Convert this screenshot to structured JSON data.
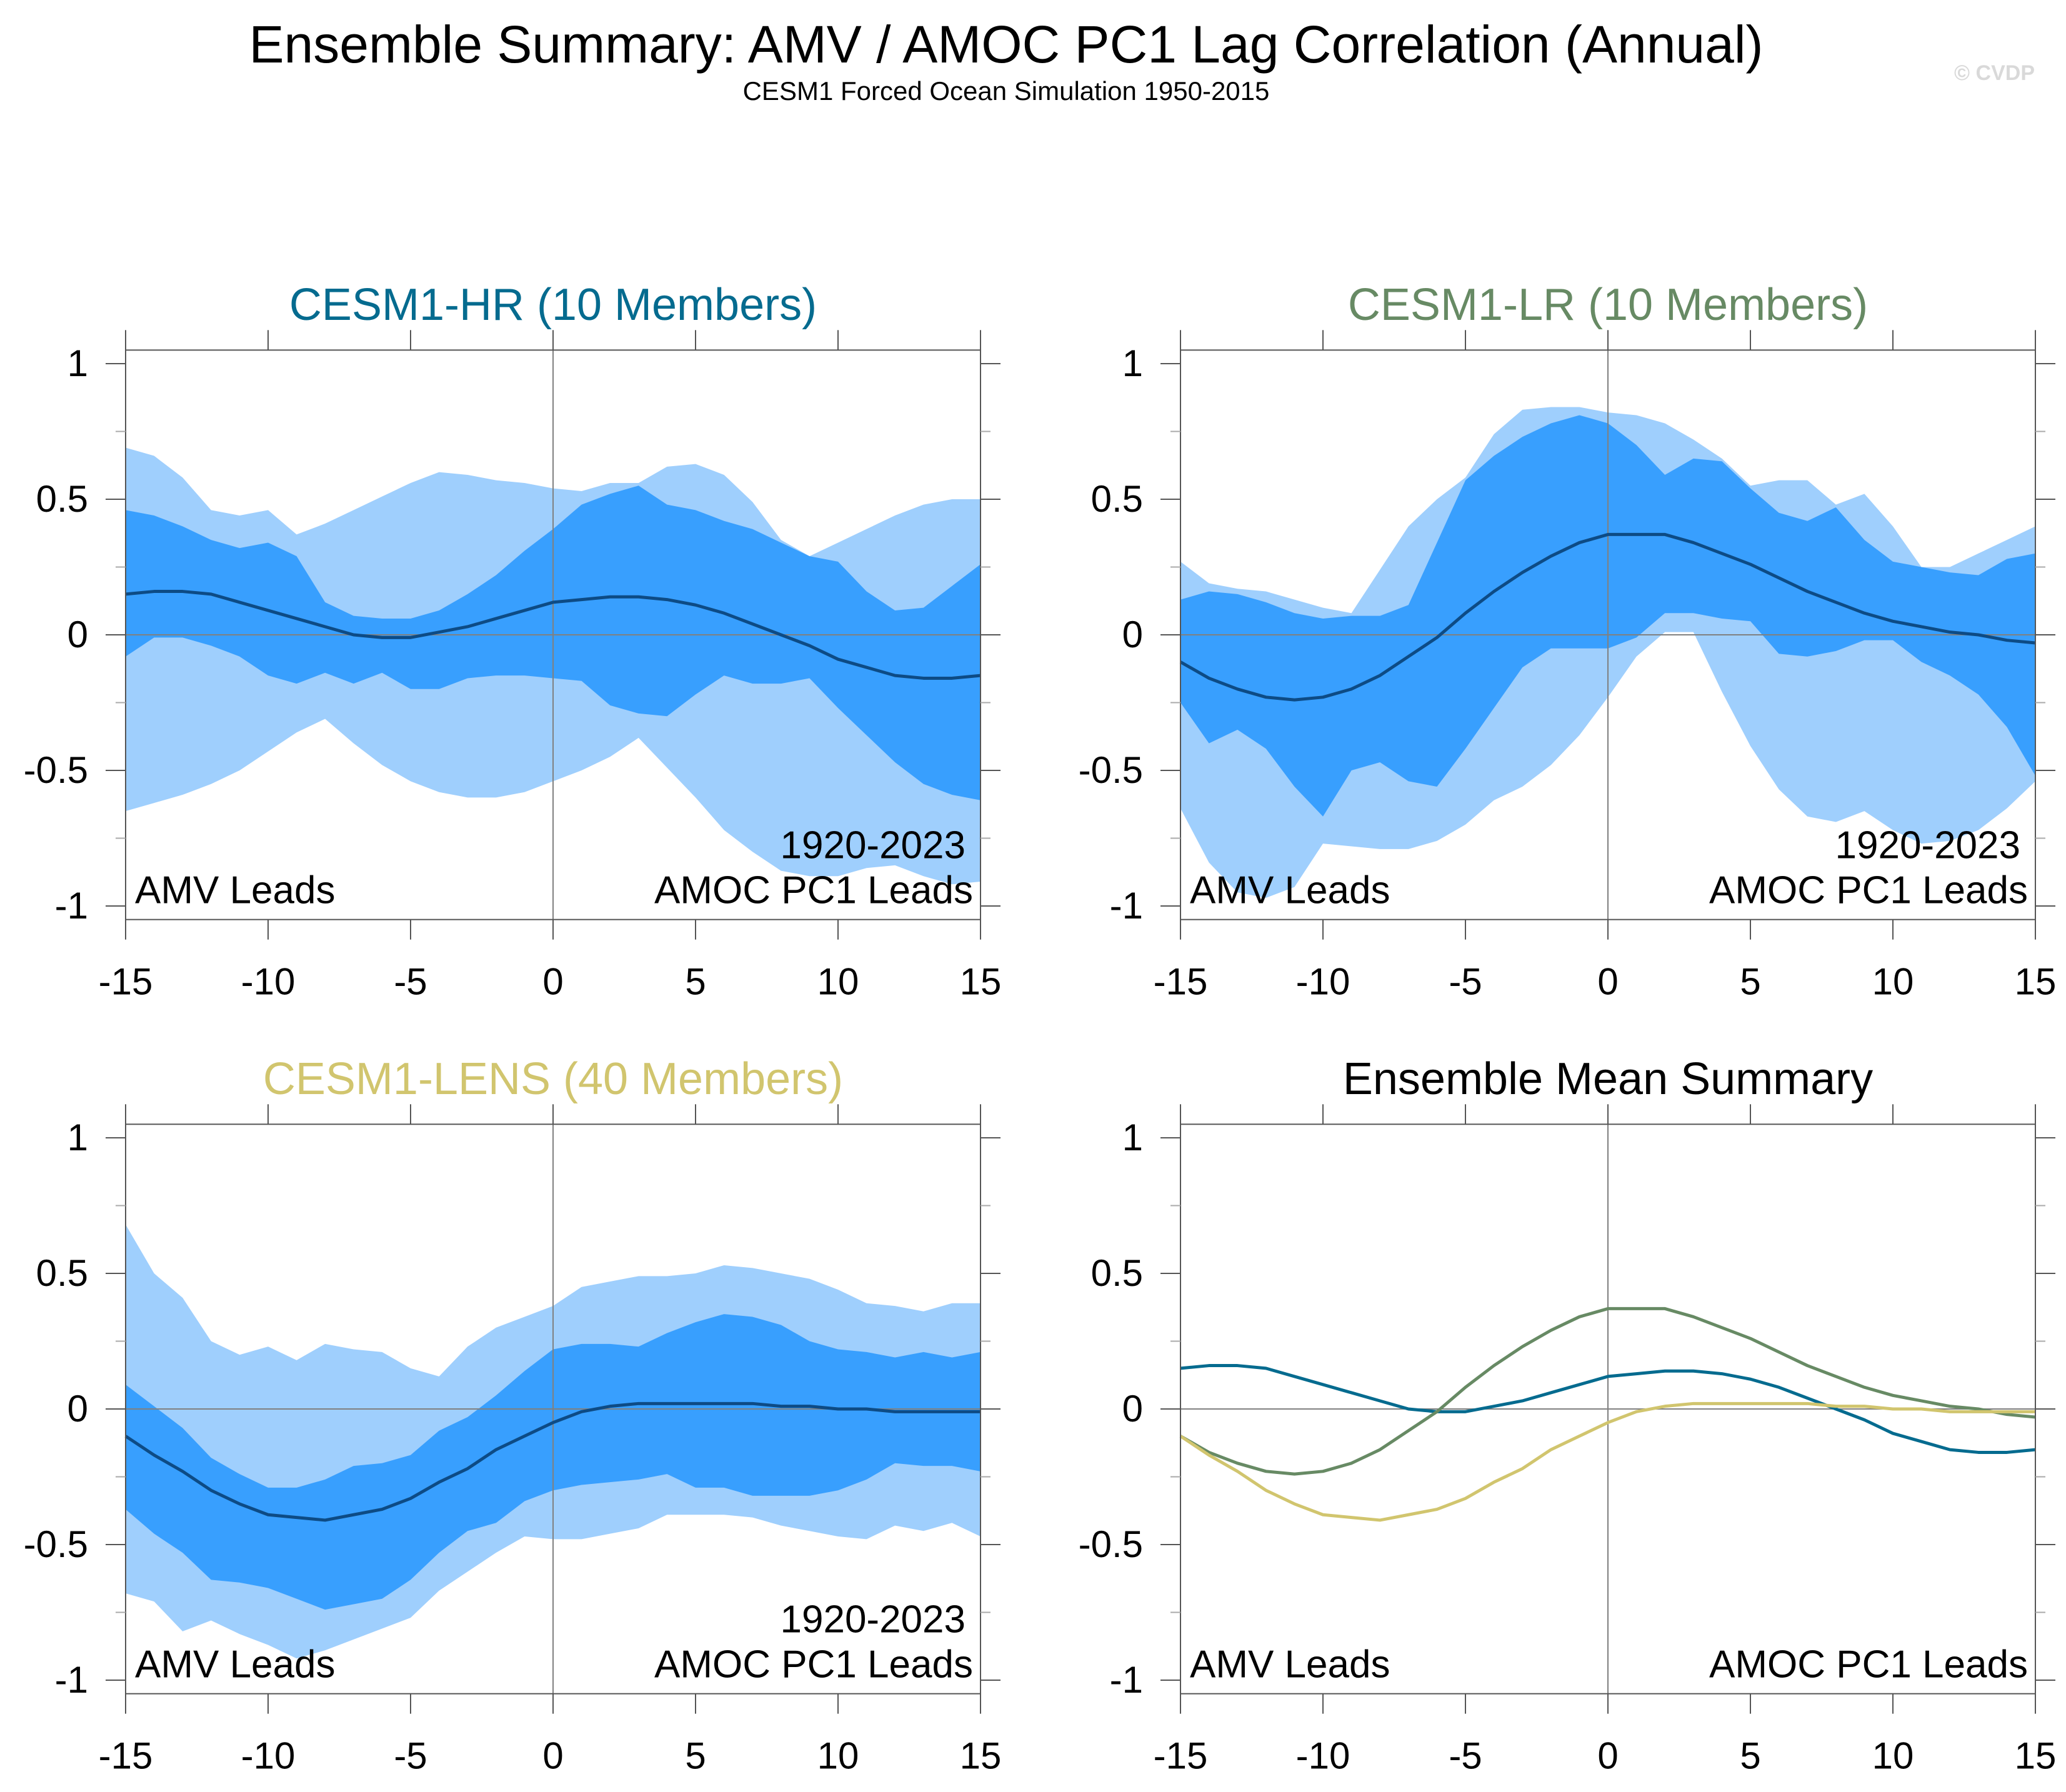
{
  "figure": {
    "title": "Ensemble Summary: AMV / AMOC PC1 Lag Correlation (Annual)",
    "subtitle": "CESM1 Forced Ocean Simulation 1950-2015",
    "copyright": "© CVDP"
  },
  "colors": {
    "hr": "#056b8f",
    "lr": "#678a64",
    "lens": "#d1c56e",
    "summary_title": "#000000",
    "band_outer": "#9fcffd",
    "band_inner": "#389ffe",
    "mean_line": "#0d4b85",
    "ref_line": "#808080"
  },
  "chart_data": [
    {
      "id": "hr",
      "type": "area",
      "title": "CESM1-HR (10 Members)",
      "title_color_key": "hr",
      "xlabel": "",
      "ylabel": "",
      "xlim": [
        -15,
        15
      ],
      "ylim": [
        -1.05,
        1.05
      ],
      "xticks": [
        -15,
        -10,
        -5,
        0,
        5,
        10,
        15
      ],
      "xtick_labels": [
        "-15",
        "-10",
        "-5",
        "0",
        "5",
        "10",
        "15"
      ],
      "yticks": [
        -1,
        -0.5,
        0,
        0.5,
        1
      ],
      "ytick_labels": [
        "-1",
        "-0.5",
        "0",
        "0.5",
        "1"
      ],
      "annotations": {
        "left": "AMV Leads",
        "right_top": "1920-2023",
        "right": "AMOC PC1 Leads"
      },
      "x": [
        -15,
        -14,
        -13,
        -12,
        -11,
        -10,
        -9,
        -8,
        -7,
        -6,
        -5,
        -4,
        -3,
        -2,
        -1,
        0,
        1,
        2,
        3,
        4,
        5,
        6,
        7,
        8,
        9,
        10,
        11,
        12,
        13,
        14,
        15
      ],
      "outer_upper": [
        0.69,
        0.66,
        0.58,
        0.46,
        0.44,
        0.46,
        0.37,
        0.41,
        0.46,
        0.51,
        0.56,
        0.6,
        0.59,
        0.57,
        0.56,
        0.54,
        0.53,
        0.56,
        0.56,
        0.62,
        0.63,
        0.59,
        0.49,
        0.35,
        0.29,
        0.34,
        0.39,
        0.44,
        0.48,
        0.5,
        0.5
      ],
      "inner_upper": [
        0.46,
        0.44,
        0.4,
        0.35,
        0.32,
        0.34,
        0.29,
        0.12,
        0.07,
        0.06,
        0.06,
        0.09,
        0.15,
        0.22,
        0.31,
        0.39,
        0.48,
        0.52,
        0.55,
        0.48,
        0.46,
        0.42,
        0.39,
        0.34,
        0.29,
        0.27,
        0.16,
        0.09,
        0.1,
        0.18,
        0.26
      ],
      "mean": [
        0.15,
        0.16,
        0.16,
        0.15,
        0.12,
        0.09,
        0.06,
        0.03,
        0.0,
        -0.01,
        -0.01,
        0.01,
        0.03,
        0.06,
        0.09,
        0.12,
        0.13,
        0.14,
        0.14,
        0.13,
        0.11,
        0.08,
        0.04,
        0.0,
        -0.04,
        -0.09,
        -0.12,
        -0.15,
        -0.16,
        -0.16,
        -0.15
      ],
      "inner_lower": [
        -0.08,
        -0.01,
        -0.01,
        -0.04,
        -0.08,
        -0.15,
        -0.18,
        -0.14,
        -0.18,
        -0.14,
        -0.2,
        -0.2,
        -0.16,
        -0.15,
        -0.15,
        -0.16,
        -0.17,
        -0.26,
        -0.29,
        -0.3,
        -0.22,
        -0.15,
        -0.18,
        -0.18,
        -0.16,
        -0.27,
        -0.37,
        -0.47,
        -0.55,
        -0.59,
        -0.61
      ],
      "outer_lower": [
        -0.65,
        -0.62,
        -0.59,
        -0.55,
        -0.5,
        -0.43,
        -0.36,
        -0.31,
        -0.4,
        -0.48,
        -0.54,
        -0.58,
        -0.6,
        -0.6,
        -0.58,
        -0.54,
        -0.5,
        -0.45,
        -0.38,
        -0.49,
        -0.6,
        -0.72,
        -0.8,
        -0.87,
        -0.89,
        -0.89,
        -0.86,
        -0.85,
        -0.89,
        -0.92,
        -0.91
      ]
    },
    {
      "id": "lr",
      "type": "area",
      "title": "CESM1-LR (10 Members)",
      "title_color_key": "lr",
      "xlabel": "",
      "ylabel": "",
      "xlim": [
        -15,
        15
      ],
      "ylim": [
        -1.05,
        1.05
      ],
      "xticks": [
        -15,
        -10,
        -5,
        0,
        5,
        10,
        15
      ],
      "xtick_labels": [
        "-15",
        "-10",
        "-5",
        "0",
        "5",
        "10",
        "15"
      ],
      "yticks": [
        -1,
        -0.5,
        0,
        0.5,
        1
      ],
      "ytick_labels": [
        "-1",
        "-0.5",
        "0",
        "0.5",
        "1"
      ],
      "annotations": {
        "left": "AMV Leads",
        "right_top": "1920-2023",
        "right": "AMOC PC1 Leads"
      },
      "x": [
        -15,
        -14,
        -13,
        -12,
        -11,
        -10,
        -9,
        -8,
        -7,
        -6,
        -5,
        -4,
        -3,
        -2,
        -1,
        0,
        1,
        2,
        3,
        4,
        5,
        6,
        7,
        8,
        9,
        10,
        11,
        12,
        13,
        14,
        15
      ],
      "outer_upper": [
        0.27,
        0.19,
        0.17,
        0.16,
        0.13,
        0.1,
        0.08,
        0.24,
        0.4,
        0.5,
        0.58,
        0.74,
        0.83,
        0.84,
        0.84,
        0.82,
        0.81,
        0.78,
        0.72,
        0.65,
        0.55,
        0.57,
        0.57,
        0.48,
        0.52,
        0.4,
        0.25,
        0.25,
        0.3,
        0.35,
        0.4
      ],
      "inner_upper": [
        0.13,
        0.16,
        0.15,
        0.12,
        0.08,
        0.06,
        0.07,
        0.07,
        0.11,
        0.34,
        0.57,
        0.66,
        0.73,
        0.78,
        0.81,
        0.78,
        0.7,
        0.59,
        0.65,
        0.64,
        0.54,
        0.45,
        0.42,
        0.47,
        0.35,
        0.27,
        0.25,
        0.23,
        0.22,
        0.28,
        0.3
      ],
      "mean": [
        -0.1,
        -0.16,
        -0.2,
        -0.23,
        -0.24,
        -0.23,
        -0.2,
        -0.15,
        -0.08,
        -0.01,
        0.08,
        0.16,
        0.23,
        0.29,
        0.34,
        0.37,
        0.37,
        0.37,
        0.34,
        0.3,
        0.26,
        0.21,
        0.16,
        0.12,
        0.08,
        0.05,
        0.03,
        0.01,
        0.0,
        -0.02,
        -0.03
      ],
      "inner_lower": [
        -0.25,
        -0.4,
        -0.35,
        -0.42,
        -0.56,
        -0.67,
        -0.5,
        -0.47,
        -0.54,
        -0.56,
        -0.42,
        -0.27,
        -0.12,
        -0.05,
        -0.05,
        -0.05,
        -0.01,
        0.08,
        0.08,
        0.06,
        0.05,
        -0.07,
        -0.08,
        -0.06,
        -0.02,
        -0.02,
        -0.1,
        -0.15,
        -0.22,
        -0.34,
        -0.52
      ],
      "outer_lower": [
        -0.64,
        -0.84,
        -0.95,
        -0.97,
        -0.93,
        -0.77,
        -0.78,
        -0.79,
        -0.79,
        -0.76,
        -0.7,
        -0.61,
        -0.56,
        -0.48,
        -0.37,
        -0.23,
        -0.08,
        0.01,
        0.01,
        -0.21,
        -0.41,
        -0.57,
        -0.67,
        -0.69,
        -0.65,
        -0.72,
        -0.77,
        -0.76,
        -0.72,
        -0.64,
        -0.54
      ]
    },
    {
      "id": "lens",
      "type": "area",
      "title": "CESM1-LENS (40 Members)",
      "title_color_key": "lens",
      "xlabel": "",
      "ylabel": "",
      "xlim": [
        -15,
        15
      ],
      "ylim": [
        -1.05,
        1.05
      ],
      "xticks": [
        -15,
        -10,
        -5,
        0,
        5,
        10,
        15
      ],
      "xtick_labels": [
        "-15",
        "-10",
        "-5",
        "0",
        "5",
        "10",
        "15"
      ],
      "yticks": [
        -1,
        -0.5,
        0,
        0.5,
        1
      ],
      "ytick_labels": [
        "-1",
        "-0.5",
        "0",
        "0.5",
        "1"
      ],
      "annotations": {
        "left": "AMV Leads",
        "right_top": "1920-2023",
        "right": "AMOC PC1 Leads"
      },
      "x": [
        -15,
        -14,
        -13,
        -12,
        -11,
        -10,
        -9,
        -8,
        -7,
        -6,
        -5,
        -4,
        -3,
        -2,
        -1,
        0,
        1,
        2,
        3,
        4,
        5,
        6,
        7,
        8,
        9,
        10,
        11,
        12,
        13,
        14,
        15
      ],
      "outer_upper": [
        0.68,
        0.5,
        0.41,
        0.25,
        0.2,
        0.23,
        0.18,
        0.24,
        0.22,
        0.21,
        0.15,
        0.12,
        0.23,
        0.3,
        0.34,
        0.38,
        0.45,
        0.47,
        0.49,
        0.49,
        0.5,
        0.53,
        0.52,
        0.5,
        0.48,
        0.44,
        0.39,
        0.38,
        0.36,
        0.39,
        0.39
      ],
      "inner_upper": [
        0.09,
        0.01,
        -0.07,
        -0.18,
        -0.24,
        -0.29,
        -0.29,
        -0.26,
        -0.21,
        -0.2,
        -0.17,
        -0.08,
        -0.03,
        0.05,
        0.14,
        0.22,
        0.24,
        0.24,
        0.23,
        0.28,
        0.32,
        0.35,
        0.34,
        0.31,
        0.25,
        0.22,
        0.21,
        0.19,
        0.21,
        0.19,
        0.21
      ],
      "mean": [
        -0.1,
        -0.17,
        -0.23,
        -0.3,
        -0.35,
        -0.39,
        -0.4,
        -0.41,
        -0.39,
        -0.37,
        -0.33,
        -0.27,
        -0.22,
        -0.15,
        -0.1,
        -0.05,
        -0.01,
        0.01,
        0.02,
        0.02,
        0.02,
        0.02,
        0.02,
        0.01,
        0.01,
        0.0,
        0.0,
        -0.01,
        -0.01,
        -0.01,
        -0.01
      ],
      "inner_lower": [
        -0.37,
        -0.46,
        -0.53,
        -0.63,
        -0.64,
        -0.66,
        -0.7,
        -0.74,
        -0.72,
        -0.7,
        -0.63,
        -0.53,
        -0.45,
        -0.42,
        -0.34,
        -0.3,
        -0.28,
        -0.27,
        -0.26,
        -0.24,
        -0.29,
        -0.29,
        -0.32,
        -0.32,
        -0.32,
        -0.3,
        -0.26,
        -0.2,
        -0.21,
        -0.21,
        -0.23
      ],
      "outer_lower": [
        -0.68,
        -0.71,
        -0.82,
        -0.78,
        -0.83,
        -0.87,
        -0.92,
        -0.89,
        -0.85,
        -0.81,
        -0.77,
        -0.67,
        -0.6,
        -0.53,
        -0.47,
        -0.48,
        -0.48,
        -0.46,
        -0.44,
        -0.39,
        -0.39,
        -0.39,
        -0.4,
        -0.43,
        -0.45,
        -0.47,
        -0.48,
        -0.43,
        -0.45,
        -0.42,
        -0.47
      ]
    },
    {
      "id": "summary",
      "type": "line",
      "title": "Ensemble Mean Summary",
      "title_color_key": "summary_title",
      "xlabel": "",
      "ylabel": "",
      "xlim": [
        -15,
        15
      ],
      "ylim": [
        -1.05,
        1.05
      ],
      "xticks": [
        -15,
        -10,
        -5,
        0,
        5,
        10,
        15
      ],
      "xtick_labels": [
        "-15",
        "-10",
        "-5",
        "0",
        "5",
        "10",
        "15"
      ],
      "yticks": [
        -1,
        -0.5,
        0,
        0.5,
        1
      ],
      "ytick_labels": [
        "-1",
        "-0.5",
        "0",
        "0.5",
        "1"
      ],
      "annotations": {
        "left": "AMV Leads",
        "right": "AMOC PC1 Leads"
      },
      "x": [
        -15,
        -14,
        -13,
        -12,
        -11,
        -10,
        -9,
        -8,
        -7,
        -6,
        -5,
        -4,
        -3,
        -2,
        -1,
        0,
        1,
        2,
        3,
        4,
        5,
        6,
        7,
        8,
        9,
        10,
        11,
        12,
        13,
        14,
        15
      ],
      "series": [
        {
          "name": "CESM1-HR",
          "color_key": "hr",
          "source": "hr"
        },
        {
          "name": "CESM1-LR",
          "color_key": "lr",
          "source": "lr"
        },
        {
          "name": "CESM1-LENS",
          "color_key": "lens",
          "source": "lens"
        }
      ]
    }
  ]
}
